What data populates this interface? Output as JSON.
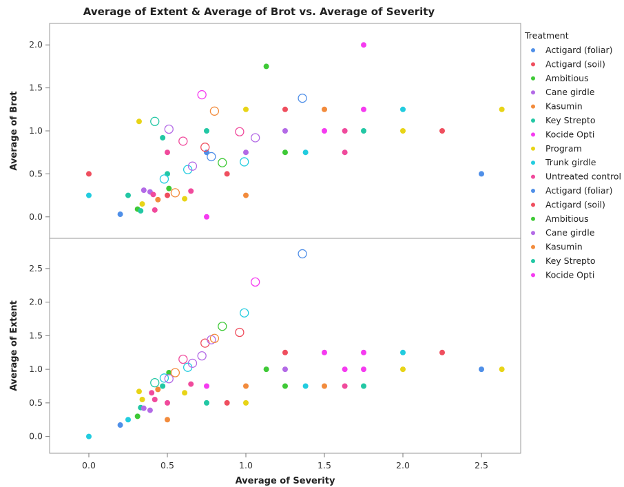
{
  "chart_data": {
    "type": "scatter",
    "title": "Average of Extent & Average of Brot vs. Average of Severity",
    "xlabel": "Average of Severity",
    "xlim": [
      -0.25,
      2.75
    ],
    "x_ticks": [
      "0.0",
      "0.5",
      "1.0",
      "1.5",
      "2.0",
      "2.5"
    ],
    "x_tick_values": [
      0,
      0.5,
      1.0,
      1.5,
      2.0,
      2.5
    ],
    "legend": {
      "title": "Treatment",
      "placement": "right",
      "entries": [
        {
          "label": "Actigard (foliar)",
          "color": "#4f8fe8"
        },
        {
          "label": "Actigard (soil)",
          "color": "#ef4e5e"
        },
        {
          "label": "Ambitious",
          "color": "#3ec936"
        },
        {
          "label": "Cane girdle",
          "color": "#b36ae6"
        },
        {
          "label": "Kasumin",
          "color": "#f28b3c"
        },
        {
          "label": "Key Strepto",
          "color": "#22c7a4"
        },
        {
          "label": "Kocide Opti",
          "color": "#f53bf0"
        },
        {
          "label": "Program",
          "color": "#e8d417"
        },
        {
          "label": "Trunk girdle",
          "color": "#22ccdf"
        },
        {
          "label": "Untreated control",
          "color": "#f04a9c"
        },
        {
          "label": "Actigard (foliar)",
          "color": "#4f8fe8"
        },
        {
          "label": "Actigard (soil)",
          "color": "#ef4e5e"
        },
        {
          "label": "Ambitious",
          "color": "#3ec936"
        },
        {
          "label": "Cane girdle",
          "color": "#b36ae6"
        },
        {
          "label": "Kasumin",
          "color": "#f28b3c"
        },
        {
          "label": "Key Strepto",
          "color": "#22c7a4"
        },
        {
          "label": "Kocide Opti",
          "color": "#f53bf0"
        }
      ]
    },
    "panels": [
      {
        "ylabel": "Average of Brot",
        "ylim": [
          -0.25,
          2.25
        ],
        "y_ticks": [
          "0.0",
          "0.5",
          "1.0",
          "1.5",
          "2.0"
        ],
        "y_tick_values": [
          0,
          0.5,
          1.0,
          1.5,
          2.0
        ],
        "points": [
          {
            "x": 0.0,
            "y": 0.5,
            "color": "#ef4e5e",
            "filled": true
          },
          {
            "x": 0.0,
            "y": 0.25,
            "color": "#22ccdf",
            "filled": true
          },
          {
            "x": 0.2,
            "y": 0.03,
            "color": "#4f8fe8",
            "filled": true
          },
          {
            "x": 0.25,
            "y": 0.25,
            "color": "#22c7a4",
            "filled": true
          },
          {
            "x": 0.31,
            "y": 0.09,
            "color": "#3ec936",
            "filled": true
          },
          {
            "x": 0.32,
            "y": 1.11,
            "color": "#e8d417",
            "filled": true
          },
          {
            "x": 0.33,
            "y": 0.07,
            "color": "#22c7a4",
            "filled": true
          },
          {
            "x": 0.34,
            "y": 0.15,
            "color": "#e8d417",
            "filled": true
          },
          {
            "x": 0.35,
            "y": 0.31,
            "color": "#b36ae6",
            "filled": true
          },
          {
            "x": 0.39,
            "y": 0.29,
            "color": "#b36ae6",
            "filled": true
          },
          {
            "x": 0.41,
            "y": 0.26,
            "color": "#f04a9c",
            "filled": true
          },
          {
            "x": 0.42,
            "y": 0.08,
            "color": "#f04a9c",
            "filled": true
          },
          {
            "x": 0.44,
            "y": 0.2,
            "color": "#f28b3c",
            "filled": true
          },
          {
            "x": 0.47,
            "y": 0.92,
            "color": "#22c7a4",
            "filled": true
          },
          {
            "x": 0.5,
            "y": 0.25,
            "color": "#ef4e5e",
            "filled": true
          },
          {
            "x": 0.5,
            "y": 0.5,
            "color": "#22c7a4",
            "filled": true
          },
          {
            "x": 0.5,
            "y": 0.75,
            "color": "#f04a9c",
            "filled": true
          },
          {
            "x": 0.51,
            "y": 0.33,
            "color": "#3ec936",
            "filled": true
          },
          {
            "x": 0.61,
            "y": 0.21,
            "color": "#e8d417",
            "filled": true
          },
          {
            "x": 0.65,
            "y": 0.3,
            "color": "#f04a9c",
            "filled": true
          },
          {
            "x": 0.75,
            "y": 1.0,
            "color": "#22c7a4",
            "filled": true
          },
          {
            "x": 0.75,
            "y": 0.75,
            "color": "#4f8fe8",
            "filled": true
          },
          {
            "x": 0.75,
            "y": 0.0,
            "color": "#f53bf0",
            "filled": true
          },
          {
            "x": 0.88,
            "y": 0.5,
            "color": "#ef4e5e",
            "filled": true
          },
          {
            "x": 1.0,
            "y": 1.25,
            "color": "#e8d417",
            "filled": true
          },
          {
            "x": 1.0,
            "y": 0.75,
            "color": "#b36ae6",
            "filled": true
          },
          {
            "x": 1.0,
            "y": 0.25,
            "color": "#f28b3c",
            "filled": true
          },
          {
            "x": 1.13,
            "y": 1.75,
            "color": "#3ec936",
            "filled": true
          },
          {
            "x": 1.25,
            "y": 1.25,
            "color": "#ef4e5e",
            "filled": true
          },
          {
            "x": 1.25,
            "y": 1.0,
            "color": "#b36ae6",
            "filled": true
          },
          {
            "x": 1.25,
            "y": 0.75,
            "color": "#3ec936",
            "filled": true
          },
          {
            "x": 1.38,
            "y": 0.75,
            "color": "#22ccdf",
            "filled": true
          },
          {
            "x": 1.5,
            "y": 1.25,
            "color": "#f28b3c",
            "filled": true
          },
          {
            "x": 1.5,
            "y": 1.0,
            "color": "#f53bf0",
            "filled": true
          },
          {
            "x": 1.63,
            "y": 1.0,
            "color": "#f04a9c",
            "filled": true
          },
          {
            "x": 1.63,
            "y": 0.75,
            "color": "#f04a9c",
            "filled": true
          },
          {
            "x": 1.75,
            "y": 2.0,
            "color": "#f53bf0",
            "filled": true
          },
          {
            "x": 1.75,
            "y": 1.25,
            "color": "#f53bf0",
            "filled": true
          },
          {
            "x": 1.75,
            "y": 1.0,
            "color": "#22c7a4",
            "filled": true
          },
          {
            "x": 2.0,
            "y": 1.25,
            "color": "#22ccdf",
            "filled": true
          },
          {
            "x": 2.0,
            "y": 1.0,
            "color": "#e8d417",
            "filled": true
          },
          {
            "x": 2.25,
            "y": 1.0,
            "color": "#ef4e5e",
            "filled": true
          },
          {
            "x": 2.5,
            "y": 0.5,
            "color": "#4f8fe8",
            "filled": true
          },
          {
            "x": 2.63,
            "y": 1.25,
            "color": "#e8d417",
            "filled": true
          },
          {
            "x": 0.42,
            "y": 1.11,
            "color": "#22c7a4",
            "filled": false
          },
          {
            "x": 0.48,
            "y": 0.44,
            "color": "#22ccdf",
            "filled": false
          },
          {
            "x": 0.51,
            "y": 1.02,
            "color": "#b36ae6",
            "filled": false
          },
          {
            "x": 0.55,
            "y": 0.28,
            "color": "#f28b3c",
            "filled": false
          },
          {
            "x": 0.6,
            "y": 0.88,
            "color": "#f04a9c",
            "filled": false
          },
          {
            "x": 0.63,
            "y": 0.55,
            "color": "#22ccdf",
            "filled": false
          },
          {
            "x": 0.66,
            "y": 0.59,
            "color": "#b36ae6",
            "filled": false
          },
          {
            "x": 0.72,
            "y": 1.42,
            "color": "#f53bf0",
            "filled": false
          },
          {
            "x": 0.74,
            "y": 0.81,
            "color": "#ef4e5e",
            "filled": false
          },
          {
            "x": 0.78,
            "y": 0.7,
            "color": "#4f8fe8",
            "filled": false
          },
          {
            "x": 0.8,
            "y": 1.23,
            "color": "#f28b3c",
            "filled": false
          },
          {
            "x": 0.85,
            "y": 0.63,
            "color": "#3ec936",
            "filled": false
          },
          {
            "x": 0.96,
            "y": 0.99,
            "color": "#f04a9c",
            "filled": false
          },
          {
            "x": 0.99,
            "y": 0.64,
            "color": "#22ccdf",
            "filled": false
          },
          {
            "x": 1.06,
            "y": 0.92,
            "color": "#b36ae6",
            "filled": false
          },
          {
            "x": 1.36,
            "y": 1.38,
            "color": "#4f8fe8",
            "filled": false
          }
        ]
      },
      {
        "ylabel": "Average of Extent",
        "ylim": [
          -0.25,
          2.95
        ],
        "y_ticks": [
          "0.0",
          "0.5",
          "1.0",
          "1.5",
          "2.0",
          "2.5"
        ],
        "y_tick_values": [
          0,
          0.5,
          1.0,
          1.5,
          2.0,
          2.5
        ],
        "points": [
          {
            "x": 0.0,
            "y": 0.0,
            "color": "#22ccdf",
            "filled": true
          },
          {
            "x": 0.2,
            "y": 0.17,
            "color": "#4f8fe8",
            "filled": true
          },
          {
            "x": 0.25,
            "y": 0.25,
            "color": "#22ccdf",
            "filled": true
          },
          {
            "x": 0.31,
            "y": 0.3,
            "color": "#3ec936",
            "filled": true
          },
          {
            "x": 0.32,
            "y": 0.67,
            "color": "#e8d417",
            "filled": true
          },
          {
            "x": 0.33,
            "y": 0.43,
            "color": "#22c7a4",
            "filled": true
          },
          {
            "x": 0.34,
            "y": 0.55,
            "color": "#e8d417",
            "filled": true
          },
          {
            "x": 0.35,
            "y": 0.42,
            "color": "#b36ae6",
            "filled": true
          },
          {
            "x": 0.39,
            "y": 0.39,
            "color": "#b36ae6",
            "filled": true
          },
          {
            "x": 0.4,
            "y": 0.65,
            "color": "#f04a9c",
            "filled": true
          },
          {
            "x": 0.42,
            "y": 0.55,
            "color": "#f04a9c",
            "filled": true
          },
          {
            "x": 0.44,
            "y": 0.7,
            "color": "#f28b3c",
            "filled": true
          },
          {
            "x": 0.47,
            "y": 0.75,
            "color": "#22c7a4",
            "filled": true
          },
          {
            "x": 0.5,
            "y": 0.5,
            "color": "#f04a9c",
            "filled": true
          },
          {
            "x": 0.5,
            "y": 0.25,
            "color": "#f28b3c",
            "filled": true
          },
          {
            "x": 0.51,
            "y": 0.95,
            "color": "#3ec936",
            "filled": true
          },
          {
            "x": 0.61,
            "y": 0.65,
            "color": "#e8d417",
            "filled": true
          },
          {
            "x": 0.65,
            "y": 0.78,
            "color": "#f04a9c",
            "filled": true
          },
          {
            "x": 0.75,
            "y": 0.75,
            "color": "#f53bf0",
            "filled": true
          },
          {
            "x": 0.75,
            "y": 0.5,
            "color": "#22c7a4",
            "filled": true
          },
          {
            "x": 0.88,
            "y": 0.5,
            "color": "#ef4e5e",
            "filled": true
          },
          {
            "x": 1.0,
            "y": 0.75,
            "color": "#f28b3c",
            "filled": true
          },
          {
            "x": 1.0,
            "y": 0.5,
            "color": "#e8d417",
            "filled": true
          },
          {
            "x": 1.13,
            "y": 1.0,
            "color": "#3ec936",
            "filled": true
          },
          {
            "x": 1.25,
            "y": 1.25,
            "color": "#ef4e5e",
            "filled": true
          },
          {
            "x": 1.25,
            "y": 1.0,
            "color": "#b36ae6",
            "filled": true
          },
          {
            "x": 1.25,
            "y": 0.75,
            "color": "#3ec936",
            "filled": true
          },
          {
            "x": 1.38,
            "y": 0.75,
            "color": "#22ccdf",
            "filled": true
          },
          {
            "x": 1.5,
            "y": 1.25,
            "color": "#f53bf0",
            "filled": true
          },
          {
            "x": 1.5,
            "y": 0.75,
            "color": "#f28b3c",
            "filled": true
          },
          {
            "x": 1.63,
            "y": 1.0,
            "color": "#f53bf0",
            "filled": true
          },
          {
            "x": 1.63,
            "y": 0.75,
            "color": "#f04a9c",
            "filled": true
          },
          {
            "x": 1.75,
            "y": 1.25,
            "color": "#f53bf0",
            "filled": true
          },
          {
            "x": 1.75,
            "y": 1.0,
            "color": "#f53bf0",
            "filled": true
          },
          {
            "x": 1.75,
            "y": 0.75,
            "color": "#22c7a4",
            "filled": true
          },
          {
            "x": 2.0,
            "y": 1.25,
            "color": "#22ccdf",
            "filled": true
          },
          {
            "x": 2.0,
            "y": 1.0,
            "color": "#e8d417",
            "filled": true
          },
          {
            "x": 2.25,
            "y": 1.25,
            "color": "#ef4e5e",
            "filled": true
          },
          {
            "x": 2.5,
            "y": 1.0,
            "color": "#4f8fe8",
            "filled": true
          },
          {
            "x": 2.63,
            "y": 1.0,
            "color": "#e8d417",
            "filled": true
          },
          {
            "x": 0.42,
            "y": 0.8,
            "color": "#22c7a4",
            "filled": false
          },
          {
            "x": 0.48,
            "y": 0.87,
            "color": "#22ccdf",
            "filled": false
          },
          {
            "x": 0.51,
            "y": 0.86,
            "color": "#b36ae6",
            "filled": false
          },
          {
            "x": 0.55,
            "y": 0.95,
            "color": "#f28b3c",
            "filled": false
          },
          {
            "x": 0.6,
            "y": 1.15,
            "color": "#f04a9c",
            "filled": false
          },
          {
            "x": 0.63,
            "y": 1.03,
            "color": "#22ccdf",
            "filled": false
          },
          {
            "x": 0.66,
            "y": 1.09,
            "color": "#b36ae6",
            "filled": false
          },
          {
            "x": 0.72,
            "y": 1.2,
            "color": "#b36ae6",
            "filled": false
          },
          {
            "x": 0.74,
            "y": 1.39,
            "color": "#ef4e5e",
            "filled": false
          },
          {
            "x": 0.78,
            "y": 1.44,
            "color": "#b36ae6",
            "filled": false
          },
          {
            "x": 0.8,
            "y": 1.46,
            "color": "#f28b3c",
            "filled": false
          },
          {
            "x": 0.85,
            "y": 1.64,
            "color": "#3ec936",
            "filled": false
          },
          {
            "x": 0.96,
            "y": 1.55,
            "color": "#ef4e5e",
            "filled": false
          },
          {
            "x": 0.99,
            "y": 1.84,
            "color": "#22ccdf",
            "filled": false
          },
          {
            "x": 1.06,
            "y": 2.3,
            "color": "#f53bf0",
            "filled": false
          },
          {
            "x": 1.36,
            "y": 2.72,
            "color": "#4f8fe8",
            "filled": false
          }
        ]
      }
    ]
  }
}
